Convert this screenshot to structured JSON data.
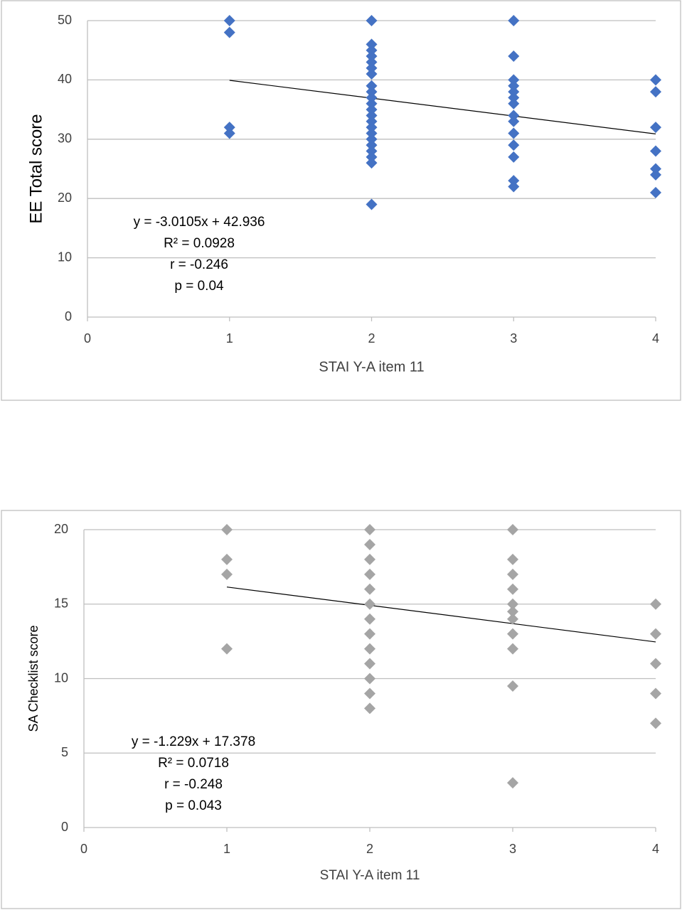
{
  "chart_data": [
    {
      "type": "scatter",
      "color": "#4472c4",
      "x": [
        1,
        1,
        1,
        1,
        2,
        2,
        2,
        2,
        2,
        2,
        2,
        2,
        2,
        2,
        2,
        2,
        2,
        2,
        2,
        2,
        2,
        2,
        2,
        2,
        2,
        2,
        3,
        3,
        3,
        3,
        3,
        3,
        3,
        3,
        3,
        3,
        3,
        3,
        3,
        3,
        4,
        4,
        4,
        4,
        4,
        4,
        4
      ],
      "values": [
        50,
        48,
        32,
        31,
        50,
        46,
        45,
        44,
        43,
        42,
        41,
        39,
        38,
        37,
        36,
        35,
        34,
        33,
        32,
        31,
        30,
        29,
        28,
        27,
        26,
        19,
        50,
        44,
        40,
        39,
        38,
        37,
        36,
        34,
        33,
        31,
        29,
        27,
        23,
        22,
        40,
        38,
        32,
        28,
        25,
        24,
        21
      ],
      "trendline": {
        "x": [
          1,
          4
        ],
        "values": [
          39.93,
          30.89
        ]
      },
      "annotations": [
        "y = -3.0105x + 42.936",
        "R² = 0.0928",
        "r = -0.246",
        "p = 0.04"
      ],
      "xlabel": "STAI Y-A item 11",
      "ylabel": "EE Total score",
      "xlim": [
        0,
        4
      ],
      "xticks": [
        0,
        1,
        2,
        3,
        4
      ],
      "ylim": [
        0,
        50
      ],
      "yticks": [
        0,
        10,
        20,
        30,
        40,
        50
      ],
      "grid": true
    },
    {
      "type": "scatter",
      "color": "#a5a5a5",
      "x": [
        1,
        1,
        1,
        1,
        2,
        2,
        2,
        2,
        2,
        2,
        2,
        2,
        2,
        2,
        2,
        2,
        2,
        3,
        3,
        3,
        3,
        3,
        3,
        3,
        3,
        3,
        3,
        3,
        4,
        4,
        4,
        4,
        4
      ],
      "values": [
        20,
        18,
        17,
        12,
        20,
        19,
        18,
        17,
        16,
        15,
        14,
        13,
        12,
        11,
        10,
        9,
        8,
        20,
        18,
        17,
        16,
        15,
        14.5,
        14,
        13,
        12,
        9.5,
        3,
        15,
        13,
        11,
        9,
        7
      ],
      "trendline": {
        "x": [
          1,
          4
        ],
        "values": [
          16.149,
          12.462
        ]
      },
      "annotations": [
        "y = -1.229x + 17.378",
        "R² = 0.0718",
        "r = -0.248",
        "p = 0.043"
      ],
      "xlabel": "STAI Y-A item 11",
      "ylabel": "SA Checklist score",
      "xlim": [
        0,
        4
      ],
      "xticks": [
        0,
        1,
        2,
        3,
        4
      ],
      "ylim": [
        0,
        20
      ],
      "yticks": [
        0,
        5,
        10,
        15,
        20
      ],
      "grid": true
    }
  ]
}
